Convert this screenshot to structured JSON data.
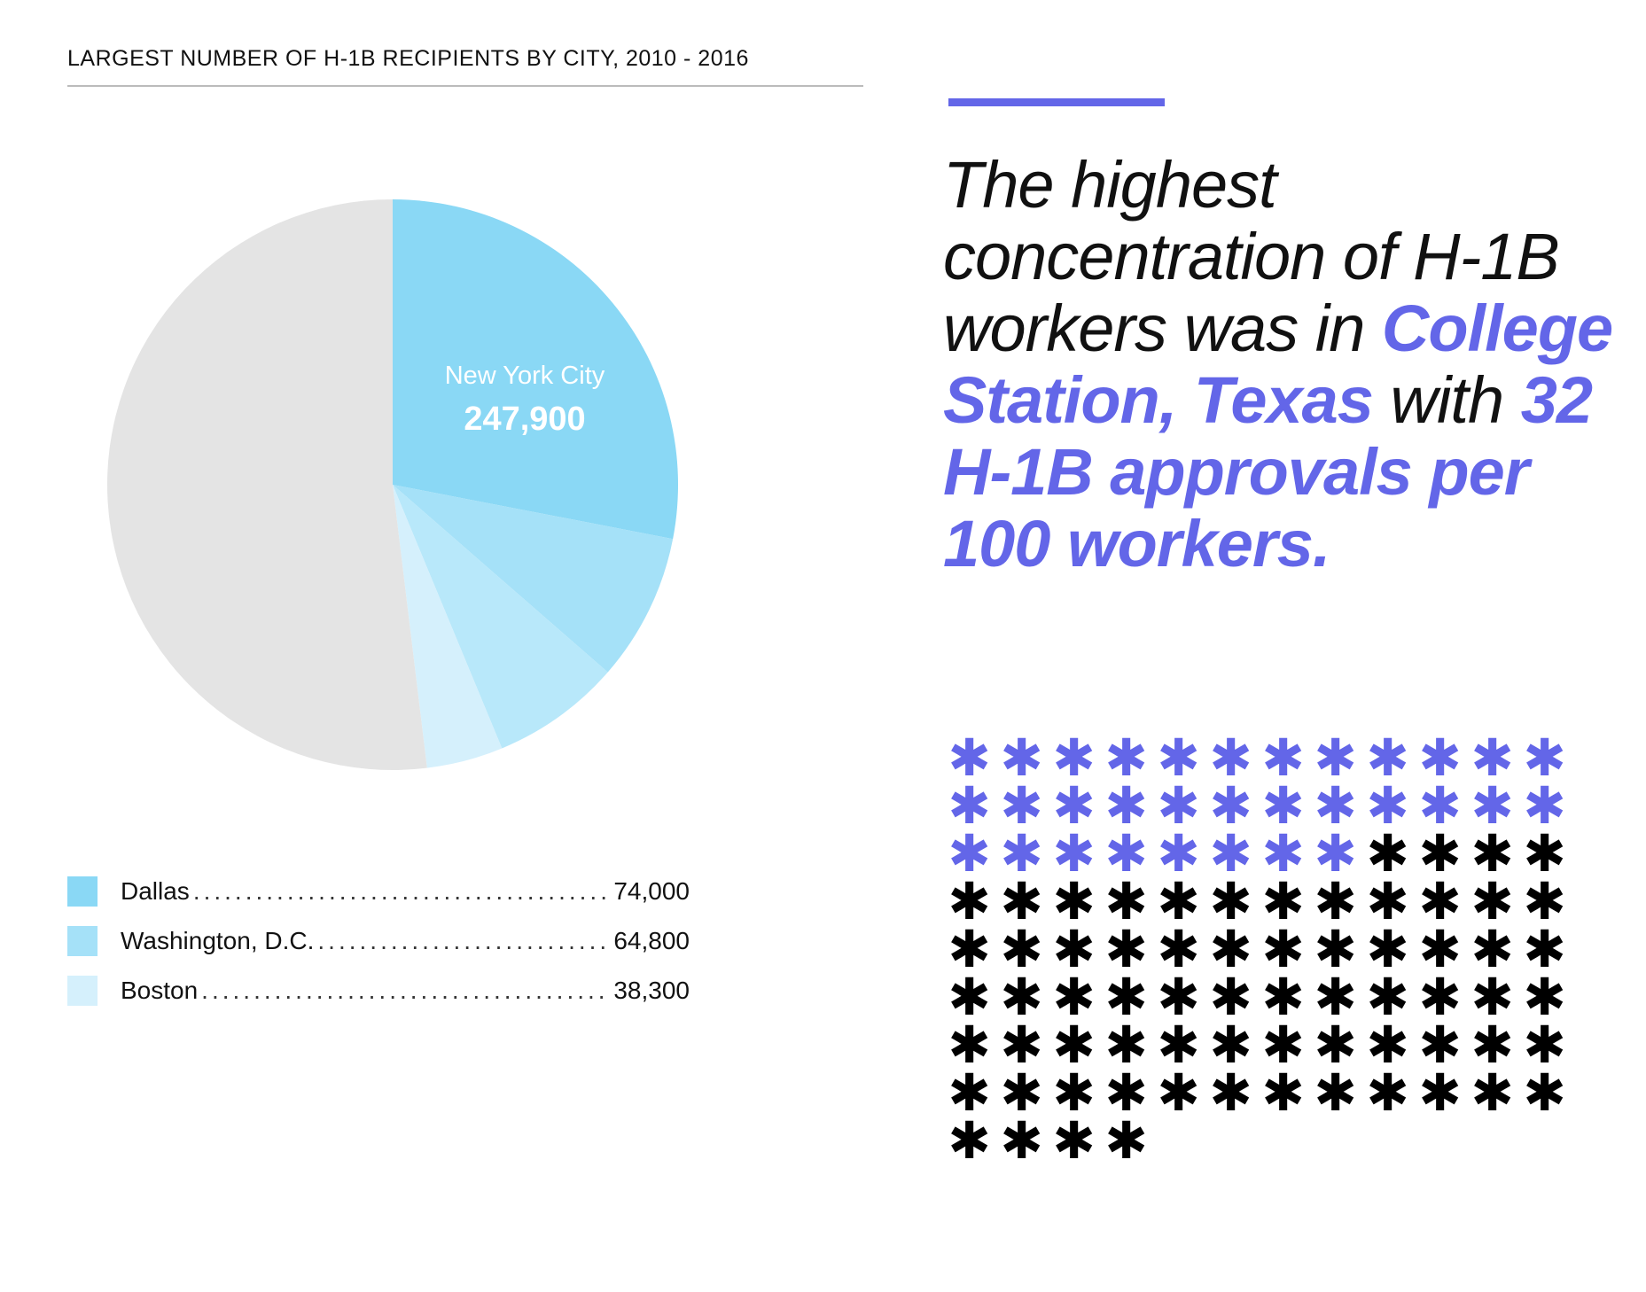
{
  "chart_data": [
    {
      "type": "pie",
      "title": "LARGEST NUMBER OF H-1B RECIPIENTS BY CITY, 2010 - 2016",
      "slices": [
        {
          "name": "New York City",
          "value": 247900,
          "color": "#8ad8f5"
        },
        {
          "name": "Dallas",
          "value": 74000,
          "color": "#a5e1f8"
        },
        {
          "name": "Washington, D.C.",
          "value": 64800,
          "color": "#b8e8fa"
        },
        {
          "name": "Boston",
          "value": 38300,
          "color": "#d5f0fc"
        },
        {
          "name": "",
          "value": 459000,
          "color": "#e4e4e4"
        }
      ],
      "labels": {
        "featured_name": "New York City",
        "featured_value": "247,900"
      },
      "legend": [
        {
          "name": "Dallas",
          "value": "74,000",
          "color": "#8ad8f5"
        },
        {
          "name": "Washington, D.C.",
          "value": "64,800",
          "color": "#a5e1f8"
        },
        {
          "name": "Boston",
          "value": "38,300",
          "color": "#d5f0fc"
        }
      ]
    },
    {
      "type": "pictograph",
      "total": 100,
      "highlighted": 32,
      "columns": 12,
      "highlight_color": "#6366e8",
      "base_color": "#000000",
      "icon": "asterisk-icon"
    }
  ],
  "callout": {
    "parts": [
      {
        "text": "The highest concentration of H-1B workers was in ",
        "highlight": false
      },
      {
        "text": "College Station, Texas",
        "highlight": true
      },
      {
        "text": " with ",
        "highlight": false
      },
      {
        "text": "32 H-1B approvals per 100 workers.",
        "highlight": true
      }
    ]
  }
}
